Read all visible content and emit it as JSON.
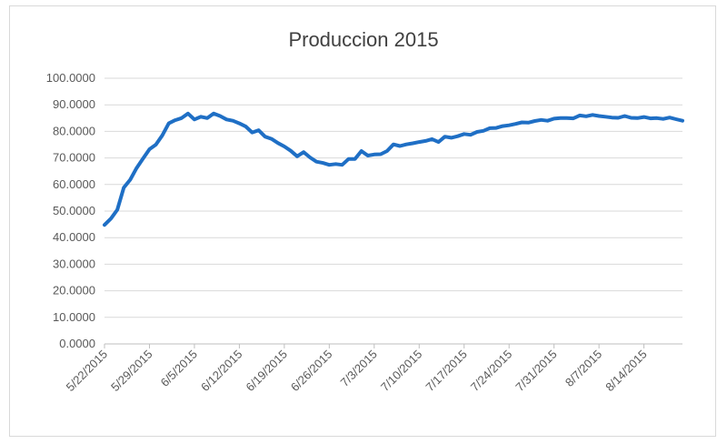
{
  "chart_data": {
    "type": "line",
    "title": "Produccion 2015",
    "xlabel": "",
    "ylabel": "",
    "ylim": [
      0,
      100
    ],
    "y_ticks": [
      "0.0000",
      "10.0000",
      "20.0000",
      "30.0000",
      "40.0000",
      "50.0000",
      "60.0000",
      "70.0000",
      "80.0000",
      "90.0000",
      "100.0000"
    ],
    "x_ticks": [
      "5/22/2015",
      "5/29/2015",
      "6/5/2015",
      "6/12/2015",
      "6/19/2015",
      "6/26/2015",
      "7/3/2015",
      "7/10/2015",
      "7/17/2015",
      "7/24/2015",
      "7/31/2015",
      "8/7/2015",
      "8/14/2015"
    ],
    "x_range": [
      "2015-05-22",
      "2015-08-20"
    ],
    "grid": "horizontal",
    "legend": "none",
    "colors": {
      "series": "#1f6fc5"
    },
    "series": [
      {
        "x": [
          "2015-05-22",
          "2015-05-23",
          "2015-05-24",
          "2015-05-25",
          "2015-05-26",
          "2015-05-27",
          "2015-05-28",
          "2015-05-29",
          "2015-05-30",
          "2015-05-31",
          "2015-06-01",
          "2015-06-02",
          "2015-06-03",
          "2015-06-04",
          "2015-06-05",
          "2015-06-06",
          "2015-06-07",
          "2015-06-08",
          "2015-06-09",
          "2015-06-10",
          "2015-06-11",
          "2015-06-12",
          "2015-06-13",
          "2015-06-14",
          "2015-06-15",
          "2015-06-16",
          "2015-06-17",
          "2015-06-18",
          "2015-06-19",
          "2015-06-20",
          "2015-06-21",
          "2015-06-22",
          "2015-06-23",
          "2015-06-24",
          "2015-06-25",
          "2015-06-26",
          "2015-06-27",
          "2015-06-28",
          "2015-06-29",
          "2015-06-30",
          "2015-07-01",
          "2015-07-02",
          "2015-07-03",
          "2015-07-04",
          "2015-07-05",
          "2015-07-06",
          "2015-07-07",
          "2015-07-08",
          "2015-07-09",
          "2015-07-10",
          "2015-07-11",
          "2015-07-12",
          "2015-07-13",
          "2015-07-14",
          "2015-07-15",
          "2015-07-16",
          "2015-07-17",
          "2015-07-18",
          "2015-07-19",
          "2015-07-20",
          "2015-07-21",
          "2015-07-22",
          "2015-07-23",
          "2015-07-24",
          "2015-07-25",
          "2015-07-26",
          "2015-07-27",
          "2015-07-28",
          "2015-07-29",
          "2015-07-30",
          "2015-07-31",
          "2015-08-01",
          "2015-08-02",
          "2015-08-03",
          "2015-08-04",
          "2015-08-05",
          "2015-08-06",
          "2015-08-07",
          "2015-08-08",
          "2015-08-09",
          "2015-08-10",
          "2015-08-11",
          "2015-08-12",
          "2015-08-13",
          "2015-08-14",
          "2015-08-15",
          "2015-08-16",
          "2015-08-17",
          "2015-08-18",
          "2015-08-19",
          "2015-08-20"
        ],
        "values": [
          44.8,
          47.2,
          50.5,
          58.8,
          61.8,
          66.2,
          69.8,
          73.3,
          75.0,
          78.5,
          83.0,
          84.2,
          85.0,
          86.7,
          84.5,
          85.5,
          85.0,
          86.7,
          85.8,
          84.5,
          84.0,
          83.0,
          81.8,
          79.6,
          80.4,
          78.0,
          77.2,
          75.6,
          74.3,
          72.7,
          70.6,
          72.2,
          70.2,
          68.6,
          68.1,
          67.4,
          67.7,
          67.4,
          69.6,
          69.6,
          72.6,
          70.9,
          71.3,
          71.4,
          72.6,
          75.1,
          74.5,
          75.1,
          75.5,
          76.0,
          76.4,
          77.1,
          76.0,
          78.0,
          77.6,
          78.2,
          79.0,
          78.7,
          79.8,
          80.2,
          81.2,
          81.3,
          82.0,
          82.3,
          82.8,
          83.4,
          83.3,
          83.9,
          84.3,
          84.0,
          84.8,
          85.0,
          85.0,
          84.9,
          86.0,
          85.7,
          86.2,
          85.8,
          85.5,
          85.2,
          85.1,
          85.8,
          85.1,
          85.0,
          85.4,
          84.9,
          85.0,
          84.7,
          85.2,
          84.6,
          84.0
        ]
      }
    ]
  }
}
